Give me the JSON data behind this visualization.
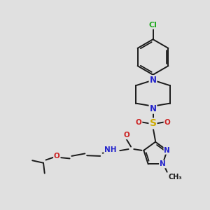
{
  "background_color": "#e0e0e0",
  "bond_color": "#1a1a1a",
  "bond_width": 1.4,
  "atom_colors": {
    "C": "#1a1a1a",
    "N": "#2222cc",
    "O": "#cc2222",
    "S": "#ccaa00",
    "Cl": "#22aa22",
    "H": "#777777"
  },
  "font_size_large": 8.5,
  "font_size_med": 7.5,
  "font_size_small": 6.5
}
